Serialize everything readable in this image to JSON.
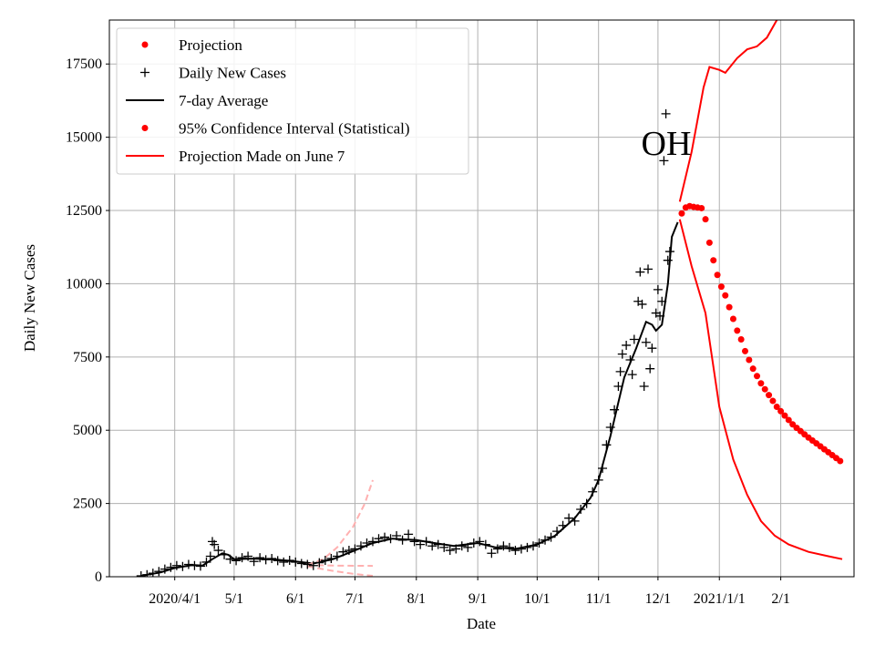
{
  "chart_data": {
    "type": "line",
    "state_label": "OH",
    "xlabel": "Date",
    "ylabel": "Daily New Cases",
    "ylim": [
      0,
      19000
    ],
    "xlim": [
      "2020-02-28",
      "2021-03-10"
    ],
    "x_ticks": [
      {
        "date": "2020-04-01",
        "label": "2020/4/1"
      },
      {
        "date": "2020-05-01",
        "label": "5/1"
      },
      {
        "date": "2020-06-01",
        "label": "6/1"
      },
      {
        "date": "2020-07-01",
        "label": "7/1"
      },
      {
        "date": "2020-08-01",
        "label": "8/1"
      },
      {
        "date": "2020-09-01",
        "label": "9/1"
      },
      {
        "date": "2020-10-01",
        "label": "10/1"
      },
      {
        "date": "2020-11-01",
        "label": "11/1"
      },
      {
        "date": "2020-12-01",
        "label": "12/1"
      },
      {
        "date": "2021-01-01",
        "label": "2021/1/1"
      },
      {
        "date": "2021-02-01",
        "label": "2/1"
      }
    ],
    "y_ticks": [
      0,
      2500,
      5000,
      7500,
      10000,
      12500,
      15000,
      17500
    ],
    "legend": {
      "placement": "top-left",
      "entries": [
        {
          "label": "Projection",
          "kind": "dot",
          "color": "#ff0000"
        },
        {
          "label": "Daily New Cases",
          "kind": "plus",
          "color": "#000000"
        },
        {
          "label": "7-day Average",
          "kind": "line",
          "color": "#000000"
        },
        {
          "label": "95% Confidence Interval (Statistical)",
          "kind": "dot",
          "color": "#ff0000"
        },
        {
          "label": "Projection Made on June 7",
          "kind": "line",
          "color": "#ff0000"
        }
      ]
    },
    "series": [
      {
        "name": "7-day Average",
        "kind": "line",
        "color": "#000000",
        "points": [
          [
            "2020-03-15",
            30
          ],
          [
            "2020-03-25",
            150
          ],
          [
            "2020-04-01",
            300
          ],
          [
            "2020-04-10",
            400
          ],
          [
            "2020-04-15",
            380
          ],
          [
            "2020-04-20",
            600
          ],
          [
            "2020-04-25",
            800
          ],
          [
            "2020-04-28",
            750
          ],
          [
            "2020-05-01",
            600
          ],
          [
            "2020-05-10",
            620
          ],
          [
            "2020-05-20",
            600
          ],
          [
            "2020-06-01",
            520
          ],
          [
            "2020-06-10",
            450
          ],
          [
            "2020-06-20",
            600
          ],
          [
            "2020-07-01",
            900
          ],
          [
            "2020-07-10",
            1150
          ],
          [
            "2020-07-20",
            1300
          ],
          [
            "2020-08-01",
            1250
          ],
          [
            "2020-08-10",
            1150
          ],
          [
            "2020-08-20",
            1050
          ],
          [
            "2020-09-01",
            1150
          ],
          [
            "2020-09-10",
            1000
          ],
          [
            "2020-09-20",
            950
          ],
          [
            "2020-10-01",
            1100
          ],
          [
            "2020-10-10",
            1400
          ],
          [
            "2020-10-20",
            2000
          ],
          [
            "2020-10-28",
            2700
          ],
          [
            "2020-11-01",
            3300
          ],
          [
            "2020-11-07",
            4800
          ],
          [
            "2020-11-14",
            6800
          ],
          [
            "2020-11-20",
            7800
          ],
          [
            "2020-11-25",
            8700
          ],
          [
            "2020-11-28",
            8600
          ],
          [
            "2020-11-30",
            8400
          ],
          [
            "2020-12-03",
            8600
          ],
          [
            "2020-12-06",
            10000
          ],
          [
            "2020-12-08",
            11600
          ],
          [
            "2020-12-11",
            12100
          ]
        ]
      },
      {
        "name": "Projection (upper)",
        "kind": "line",
        "color": "#ff0000",
        "points": [
          [
            "2020-12-12",
            12800
          ],
          [
            "2020-12-18",
            14500
          ],
          [
            "2020-12-24",
            16700
          ],
          [
            "2020-12-27",
            17400
          ],
          [
            "2021-01-01",
            17300
          ],
          [
            "2021-01-04",
            17200
          ],
          [
            "2021-01-10",
            17700
          ],
          [
            "2021-01-15",
            18000
          ],
          [
            "2021-01-20",
            18100
          ],
          [
            "2021-01-25",
            18400
          ],
          [
            "2021-01-30",
            19000
          ]
        ]
      },
      {
        "name": "Projection (lower)",
        "kind": "line",
        "color": "#ff0000",
        "points": [
          [
            "2020-12-12",
            12200
          ],
          [
            "2020-12-18",
            10600
          ],
          [
            "2020-12-25",
            9000
          ],
          [
            "2021-01-01",
            5800
          ],
          [
            "2021-01-08",
            4000
          ],
          [
            "2021-01-15",
            2800
          ],
          [
            "2021-01-22",
            1900
          ],
          [
            "2021-01-29",
            1400
          ],
          [
            "2021-02-05",
            1100
          ],
          [
            "2021-02-15",
            850
          ],
          [
            "2021-02-25",
            700
          ],
          [
            "2021-03-04",
            600
          ]
        ]
      },
      {
        "name": "Projection Made on June 7",
        "kind": "dashed",
        "color": "#ffb0b0",
        "points": [
          [
            "2020-06-07",
            400
          ],
          [
            "2020-06-15",
            600
          ],
          [
            "2020-06-22",
            1000
          ],
          [
            "2020-06-30",
            1700
          ],
          [
            "2020-07-06",
            2500
          ],
          [
            "2020-07-10",
            3300
          ]
        ]
      },
      {
        "name": "June 7 CI (mid)",
        "kind": "dashed",
        "color": "#ffb0b0",
        "points": [
          [
            "2020-06-07",
            400
          ],
          [
            "2020-06-20",
            380
          ],
          [
            "2020-07-10",
            370
          ]
        ]
      },
      {
        "name": "June 7 CI (low)",
        "kind": "dashed",
        "color": "#ffb0b0",
        "points": [
          [
            "2020-06-07",
            350
          ],
          [
            "2020-06-20",
            200
          ],
          [
            "2020-06-30",
            100
          ],
          [
            "2020-07-10",
            30
          ]
        ]
      },
      {
        "name": "Projection",
        "kind": "dots",
        "color": "#ff0000",
        "points": [
          [
            "2020-12-13",
            12400
          ],
          [
            "2020-12-15",
            12600
          ],
          [
            "2020-12-17",
            12650
          ],
          [
            "2020-12-19",
            12620
          ],
          [
            "2020-12-21",
            12600
          ],
          [
            "2020-12-23",
            12580
          ],
          [
            "2020-12-25",
            12200
          ],
          [
            "2020-12-27",
            11400
          ],
          [
            "2020-12-29",
            10800
          ],
          [
            "2020-12-31",
            10300
          ],
          [
            "2021-01-02",
            9900
          ],
          [
            "2021-01-04",
            9600
          ],
          [
            "2021-01-06",
            9200
          ],
          [
            "2021-01-08",
            8800
          ],
          [
            "2021-01-10",
            8400
          ],
          [
            "2021-01-12",
            8100
          ],
          [
            "2021-01-14",
            7700
          ],
          [
            "2021-01-16",
            7400
          ],
          [
            "2021-01-18",
            7100
          ],
          [
            "2021-01-20",
            6850
          ],
          [
            "2021-01-22",
            6600
          ],
          [
            "2021-01-24",
            6400
          ],
          [
            "2021-01-26",
            6200
          ],
          [
            "2021-01-28",
            6000
          ],
          [
            "2021-01-30",
            5800
          ],
          [
            "2021-02-01",
            5650
          ],
          [
            "2021-02-03",
            5500
          ],
          [
            "2021-02-05",
            5350
          ],
          [
            "2021-02-07",
            5200
          ],
          [
            "2021-02-09",
            5080
          ],
          [
            "2021-02-11",
            4970
          ],
          [
            "2021-02-13",
            4860
          ],
          [
            "2021-02-15",
            4750
          ],
          [
            "2021-02-17",
            4650
          ],
          [
            "2021-02-19",
            4550
          ],
          [
            "2021-02-21",
            4450
          ],
          [
            "2021-02-23",
            4350
          ],
          [
            "2021-02-25",
            4250
          ],
          [
            "2021-02-27",
            4150
          ],
          [
            "2021-03-01",
            4050
          ],
          [
            "2021-03-03",
            3950
          ]
        ]
      },
      {
        "name": "Daily New Cases",
        "kind": "plus",
        "color": "#000000",
        "points": [
          [
            "2020-03-15",
            30
          ],
          [
            "2020-03-18",
            70
          ],
          [
            "2020-03-21",
            120
          ],
          [
            "2020-03-24",
            180
          ],
          [
            "2020-03-27",
            260
          ],
          [
            "2020-03-30",
            320
          ],
          [
            "2020-04-02",
            380
          ],
          [
            "2020-04-05",
            350
          ],
          [
            "2020-04-08",
            420
          ],
          [
            "2020-04-11",
            380
          ],
          [
            "2020-04-14",
            360
          ],
          [
            "2020-04-17",
            500
          ],
          [
            "2020-04-19",
            700
          ],
          [
            "2020-04-20",
            1200
          ],
          [
            "2020-04-21",
            1100
          ],
          [
            "2020-04-23",
            900
          ],
          [
            "2020-04-26",
            750
          ],
          [
            "2020-04-29",
            600
          ],
          [
            "2020-05-02",
            550
          ],
          [
            "2020-05-05",
            650
          ],
          [
            "2020-05-08",
            700
          ],
          [
            "2020-05-11",
            520
          ],
          [
            "2020-05-14",
            650
          ],
          [
            "2020-05-17",
            580
          ],
          [
            "2020-05-20",
            620
          ],
          [
            "2020-05-23",
            550
          ],
          [
            "2020-05-26",
            500
          ],
          [
            "2020-05-29",
            560
          ],
          [
            "2020-06-01",
            500
          ],
          [
            "2020-06-04",
            450
          ],
          [
            "2020-06-07",
            420
          ],
          [
            "2020-06-10",
            380
          ],
          [
            "2020-06-13",
            480
          ],
          [
            "2020-06-16",
            560
          ],
          [
            "2020-06-19",
            620
          ],
          [
            "2020-06-22",
            700
          ],
          [
            "2020-06-25",
            850
          ],
          [
            "2020-06-28",
            900
          ],
          [
            "2020-07-01",
            950
          ],
          [
            "2020-07-04",
            1050
          ],
          [
            "2020-07-07",
            1150
          ],
          [
            "2020-07-10",
            1200
          ],
          [
            "2020-07-13",
            1300
          ],
          [
            "2020-07-16",
            1350
          ],
          [
            "2020-07-19",
            1300
          ],
          [
            "2020-07-22",
            1400
          ],
          [
            "2020-07-25",
            1250
          ],
          [
            "2020-07-28",
            1450
          ],
          [
            "2020-07-31",
            1200
          ],
          [
            "2020-08-03",
            1100
          ],
          [
            "2020-08-06",
            1200
          ],
          [
            "2020-08-09",
            1050
          ],
          [
            "2020-08-12",
            1100
          ],
          [
            "2020-08-15",
            1000
          ],
          [
            "2020-08-18",
            900
          ],
          [
            "2020-08-21",
            950
          ],
          [
            "2020-08-24",
            1050
          ],
          [
            "2020-08-27",
            1000
          ],
          [
            "2020-08-30",
            1150
          ],
          [
            "2020-09-02",
            1200
          ],
          [
            "2020-09-05",
            1100
          ],
          [
            "2020-09-08",
            800
          ],
          [
            "2020-09-11",
            950
          ],
          [
            "2020-09-14",
            1050
          ],
          [
            "2020-09-17",
            1000
          ],
          [
            "2020-09-20",
            900
          ],
          [
            "2020-09-23",
            950
          ],
          [
            "2020-09-26",
            1000
          ],
          [
            "2020-09-29",
            1050
          ],
          [
            "2020-10-02",
            1150
          ],
          [
            "2020-10-05",
            1250
          ],
          [
            "2020-10-08",
            1350
          ],
          [
            "2020-10-11",
            1550
          ],
          [
            "2020-10-14",
            1750
          ],
          [
            "2020-10-17",
            2000
          ],
          [
            "2020-10-20",
            1900
          ],
          [
            "2020-10-23",
            2300
          ],
          [
            "2020-10-26",
            2500
          ],
          [
            "2020-10-29",
            2900
          ],
          [
            "2020-11-01",
            3300
          ],
          [
            "2020-11-03",
            3700
          ],
          [
            "2020-11-05",
            4500
          ],
          [
            "2020-11-07",
            5100
          ],
          [
            "2020-11-09",
            5700
          ],
          [
            "2020-11-11",
            6500
          ],
          [
            "2020-11-12",
            7000
          ],
          [
            "2020-11-13",
            7600
          ],
          [
            "2020-11-15",
            7900
          ],
          [
            "2020-11-17",
            7400
          ],
          [
            "2020-11-18",
            6900
          ],
          [
            "2020-11-19",
            8100
          ],
          [
            "2020-11-21",
            9400
          ],
          [
            "2020-11-22",
            10400
          ],
          [
            "2020-11-23",
            9300
          ],
          [
            "2020-11-24",
            6500
          ],
          [
            "2020-11-25",
            8000
          ],
          [
            "2020-11-26",
            10500
          ],
          [
            "2020-11-27",
            7100
          ],
          [
            "2020-11-28",
            7800
          ],
          [
            "2020-11-30",
            9000
          ],
          [
            "2020-12-01",
            9800
          ],
          [
            "2020-12-02",
            8900
          ],
          [
            "2020-12-03",
            9400
          ],
          [
            "2020-12-04",
            14200
          ],
          [
            "2020-12-05",
            15800
          ],
          [
            "2020-12-06",
            10800
          ],
          [
            "2020-12-07",
            11100
          ]
        ]
      }
    ]
  }
}
